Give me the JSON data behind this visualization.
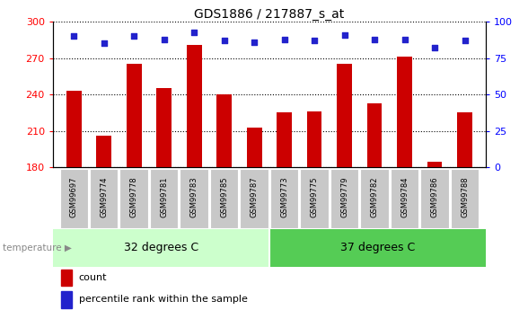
{
  "title": "GDS1886 / 217887_s_at",
  "categories": [
    "GSM99697",
    "GSM99774",
    "GSM99778",
    "GSM99781",
    "GSM99783",
    "GSM99785",
    "GSM99787",
    "GSM99773",
    "GSM99775",
    "GSM99779",
    "GSM99782",
    "GSM99784",
    "GSM99786",
    "GSM99788"
  ],
  "counts": [
    243,
    206,
    265,
    245,
    281,
    240,
    213,
    225,
    226,
    265,
    233,
    271,
    185,
    225
  ],
  "percentile_ranks": [
    90,
    85,
    90,
    88,
    93,
    87,
    86,
    88,
    87,
    91,
    88,
    88,
    82,
    87
  ],
  "group1_label": "32 degrees C",
  "group2_label": "37 degrees C",
  "group1_count": 7,
  "group2_count": 7,
  "ylim_left": [
    180,
    300
  ],
  "ylim_right": [
    0,
    100
  ],
  "yticks_left": [
    180,
    210,
    240,
    270,
    300
  ],
  "yticks_right": [
    0,
    25,
    50,
    75,
    100
  ],
  "bar_color": "#CC0000",
  "dot_color": "#2222CC",
  "group1_bg": "#CCFFCC",
  "group2_bg": "#55CC55",
  "label_bg": "#C8C8C8",
  "temperature_label": "temperature",
  "legend_count_label": "count",
  "legend_pct_label": "percentile rank within the sample",
  "title_fontsize": 10,
  "tick_label_fontsize": 8,
  "cat_fontsize": 6,
  "group_fontsize": 9
}
